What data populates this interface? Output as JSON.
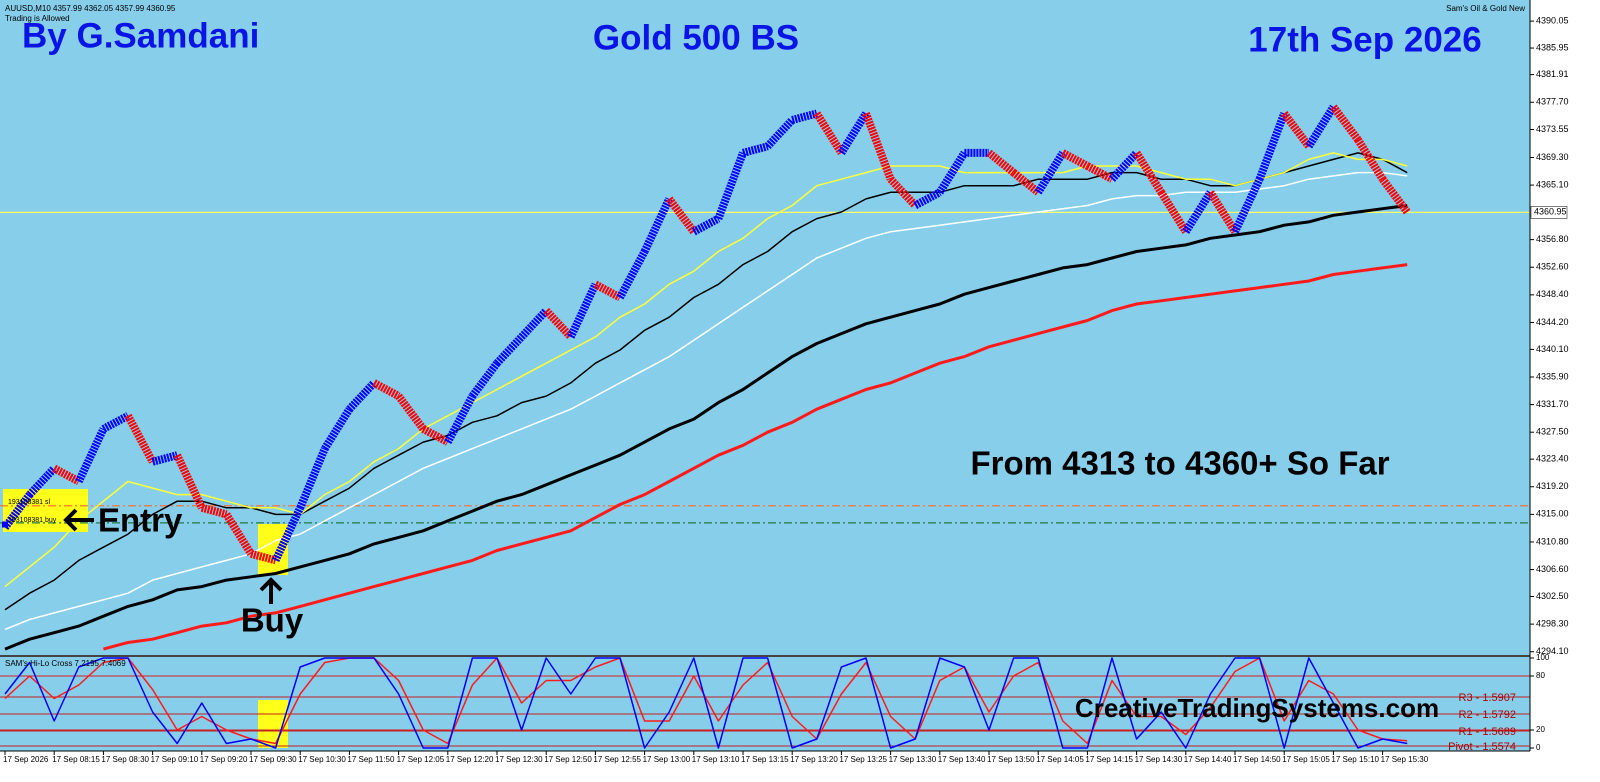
{
  "header": {
    "symbol": "AUUSD,M10 4357.99 4362.05 4357.99 4360.95",
    "trading": "Trading is Allowed",
    "indicator_name": "Sam's Oil & Gold New"
  },
  "chart_data": [
    {
      "type": "renko",
      "author": "By G.Samdani",
      "title": "Gold 500 BS",
      "subtitle": "17th Sep 2026",
      "annotation": "From 4313 to 4360+ So Far",
      "entry_label": "Entry",
      "buy_label": "Buy",
      "order_labels": [
        "193108381 sl",
        "193108381 buy"
      ],
      "website": "CreativeTradingSystems.com",
      "categories": [
        "17 Sep 2026",
        null,
        "17 Sep 08:15",
        null,
        "17 Sep 08:30",
        null,
        "17 Sep 09:10",
        null,
        "17 Sep 09:20",
        null,
        "17 Sep 09:30",
        null,
        "17 Sep 10:30",
        null,
        "17 Sep 11:50",
        null,
        "17 Sep 12:05",
        null,
        "17 Sep 12:20",
        null,
        "17 Sep 12:30",
        null,
        "17 Sep 12:50",
        null,
        "17 Sep 12:55",
        null,
        "17 Sep 13:00",
        null,
        "17 Sep 13:10",
        null,
        "17 Sep 13:15",
        null,
        "17 Sep 13:20",
        null,
        "17 Sep 13:25",
        null,
        "17 Sep 13:30",
        null,
        "17 Sep 13:40",
        null,
        "17 Sep 13:50",
        null,
        "17 Sep 14:05",
        null,
        "17 Sep 14:15",
        null,
        "17 Sep 14:30",
        null,
        "17 Sep 14:40",
        null,
        "17 Sep 14:50",
        null,
        "17 Sep 15:05",
        null,
        "17 Sep 15:10",
        null,
        "17 Sep 15:30",
        null
      ],
      "price": {
        "up_color": "#0000ff",
        "down_color": "#ff0000",
        "values": [
          4313,
          4318,
          4322,
          4320,
          4328,
          4330,
          4323,
          4324,
          4316,
          4315,
          4309,
          4308,
          4316,
          4325,
          4331,
          4335,
          4333,
          4328,
          4326,
          4333,
          4338,
          4342,
          4346,
          4342,
          4350,
          4348,
          4355,
          4363,
          4358,
          4360,
          4370,
          4371,
          4375,
          4376,
          4370,
          4376,
          4366,
          4362,
          4364,
          4370,
          4370,
          4367,
          4364,
          4370,
          4368,
          4366,
          4370,
          4364,
          4358,
          4364,
          4358,
          4366,
          4376,
          4371,
          4377,
          4372,
          4366,
          4361
        ]
      },
      "series": [
        {
          "color": "#ff1a1a",
          "thick": true,
          "values": [
            null,
            null,
            null,
            null,
            4294.5,
            4295.5,
            4296,
            4297,
            4298,
            4298.5,
            4299.5,
            4300,
            4301,
            4302,
            4303,
            4304,
            4305,
            4306,
            4307,
            4308,
            4309.5,
            4310.5,
            4311.5,
            4312.5,
            4314.5,
            4316.5,
            4318,
            4320,
            4322,
            4324,
            4325.5,
            4327.5,
            4329,
            4331,
            4332.5,
            4334,
            4335,
            4336.5,
            4338,
            4339,
            4340.5,
            4341.5,
            4342.5,
            4343.5,
            4344.5,
            4346,
            4347,
            4347.5,
            4348,
            4348.5,
            4349,
            4349.5,
            4350,
            4350.5,
            4351.5,
            4352,
            4352.5,
            4353
          ]
        },
        {
          "color": "#000000",
          "thick": true,
          "values": [
            4294.5,
            4296,
            4297,
            4298,
            4299.5,
            4301,
            4302,
            4303.5,
            4304,
            4305,
            4305.5,
            4306,
            4307,
            4308,
            4309,
            4310.5,
            4311.5,
            4312.5,
            4314,
            4315.5,
            4317,
            4318,
            4319.5,
            4321,
            4322.5,
            4324,
            4326,
            4328,
            4329.5,
            4332,
            4334,
            4336.5,
            4339,
            4341,
            4342.5,
            4344,
            4345,
            4346,
            4347,
            4348.5,
            4349.5,
            4350.5,
            4351.5,
            4352.5,
            4353,
            4354,
            4355,
            4355.5,
            4356,
            4357,
            4357.5,
            4358,
            4359,
            4359.5,
            4360.5,
            4361,
            4361.5,
            4362
          ]
        },
        {
          "color": "#ffffff",
          "thick": false,
          "values": [
            4297.5,
            4299,
            4300,
            4301,
            4302,
            4303,
            4305,
            4306,
            4307,
            4308,
            4309,
            4311,
            4312,
            4314,
            4316,
            4318,
            4320,
            4322,
            4323.5,
            4325,
            4326.5,
            4328,
            4329.5,
            4331,
            4333,
            4335,
            4337,
            4339,
            4341.5,
            4344,
            4346.5,
            4349,
            4351.5,
            4354,
            4355.5,
            4357,
            4358,
            4358.5,
            4359,
            4359.5,
            4360,
            4360.5,
            4361,
            4361.5,
            4362,
            4363,
            4363.5,
            4363.5,
            4364,
            4364,
            4364,
            4364.5,
            4365,
            4366,
            4366.5,
            4367,
            4367,
            4366.5
          ]
        },
        {
          "color": "#000000",
          "thick": false,
          "values": [
            4300.5,
            4303,
            4305,
            4308,
            4310,
            4312,
            4315,
            4317,
            4317,
            4316,
            4316,
            4315,
            4315,
            4317,
            4319,
            4322,
            4324,
            4326,
            4327,
            4329,
            4330,
            4332,
            4333,
            4335,
            4338,
            4340,
            4343,
            4345,
            4348,
            4350,
            4353,
            4355,
            4358,
            4360,
            4361,
            4363,
            4364,
            4364,
            4364,
            4365,
            4365,
            4365,
            4366,
            4366,
            4366,
            4367,
            4367,
            4366,
            4366,
            4365,
            4365,
            4366,
            4367,
            4368,
            4369,
            4370,
            4369,
            4367
          ]
        },
        {
          "color": "#ffff33",
          "thick": false,
          "values": [
            4304,
            4307,
            4310,
            4314,
            4317,
            4320,
            4319,
            4318,
            4318,
            4317,
            4316,
            4316,
            4315,
            4318,
            4320,
            4323,
            4325,
            4328,
            4330,
            4332,
            4334,
            4336,
            4338,
            4340,
            4342,
            4345,
            4347,
            4350,
            4352,
            4355,
            4357,
            4360,
            4362,
            4365,
            4366,
            4367,
            4368,
            4368,
            4368,
            4367,
            4367,
            4367,
            4367,
            4367,
            4368,
            4368,
            4368,
            4367,
            4366,
            4366,
            4365,
            4366,
            4367,
            4369,
            4370,
            4369,
            4369,
            4368
          ]
        }
      ],
      "levels": [
        {
          "value": 4360.95,
          "color": "#ffff66",
          "style": "solid"
        },
        {
          "value": 4316.3,
          "color": "#ff6a2a",
          "style": "dashdot"
        },
        {
          "value": 4313.7,
          "color": "#1f7a4a",
          "style": "dashdot"
        }
      ],
      "ylim": [
        4293.6,
        4392.5
      ],
      "yticks": [
        4390.05,
        4385.95,
        4381.91,
        {
          "value": 4377.7,
          "label": "4377.70"
        },
        4373.55,
        {
          "value": 4369.3,
          "label": "4369.30"
        },
        {
          "value": 4365.1,
          "label": "4365.10"
        },
        {
          "value": 4356.8,
          "label": "4356.80"
        },
        {
          "value": 4352.6,
          "label": "4352.60"
        },
        {
          "value": 4348.4,
          "label": "4348.40"
        },
        {
          "value": 4344.2,
          "label": "4344.20"
        },
        {
          "value": 4340.1,
          "label": "4340.10"
        },
        {
          "value": 4335.9,
          "label": "4335.90"
        },
        {
          "value": 4331.7,
          "label": "4331.70"
        },
        {
          "value": 4327.5,
          "label": "4327.50"
        },
        {
          "value": 4323.4,
          "label": "4323.40"
        },
        {
          "value": 4319.2,
          "label": "4319.20"
        },
        {
          "value": 4315,
          "label": "4315.00"
        },
        {
          "value": 4310.8,
          "label": "4310.80"
        },
        {
          "value": 4306.6,
          "label": "4306.60"
        },
        {
          "value": 4302.5,
          "label": "4302.50"
        },
        {
          "value": 4298.3,
          "label": "4298.30"
        },
        {
          "value": 4294.1,
          "label": "4294.10"
        }
      ]
    },
    {
      "type": "line",
      "title": "SAM's Hi-Lo Cross 7.2195 7.4069",
      "series": [
        {
          "color": "#ff1a1a",
          "values": [
            55,
            80,
            55,
            70,
            95,
            100,
            65,
            20,
            35,
            20,
            10,
            5,
            60,
            95,
            100,
            100,
            75,
            20,
            5,
            70,
            100,
            50,
            75,
            75,
            90,
            100,
            30,
            30,
            80,
            30,
            70,
            95,
            35,
            10,
            60,
            95,
            35,
            10,
            75,
            90,
            40,
            80,
            95,
            30,
            5,
            75,
            35,
            35,
            15,
            45,
            85,
            100,
            30,
            75,
            60,
            20,
            10,
            8
          ]
        },
        {
          "color": "#0000ff",
          "values": [
            60,
            95,
            30,
            90,
            100,
            100,
            40,
            5,
            50,
            5,
            10,
            0,
            90,
            100,
            100,
            100,
            60,
            0,
            0,
            100,
            100,
            20,
            100,
            60,
            100,
            100,
            0,
            40,
            100,
            0,
            100,
            100,
            0,
            10,
            90,
            100,
            0,
            10,
            100,
            90,
            20,
            100,
            100,
            0,
            0,
            100,
            10,
            40,
            0,
            60,
            100,
            100,
            0,
            100,
            50,
            0,
            10,
            5
          ]
        }
      ],
      "levels": [
        80,
        20
      ],
      "pivots": [
        "R3 - 1.5907",
        "R2 - 1.5792",
        "R1 - 1.5689",
        "Pivot - 1.5574"
      ],
      "ylim": [
        0,
        100
      ],
      "yticks": [
        100,
        80,
        20,
        0
      ]
    }
  ]
}
